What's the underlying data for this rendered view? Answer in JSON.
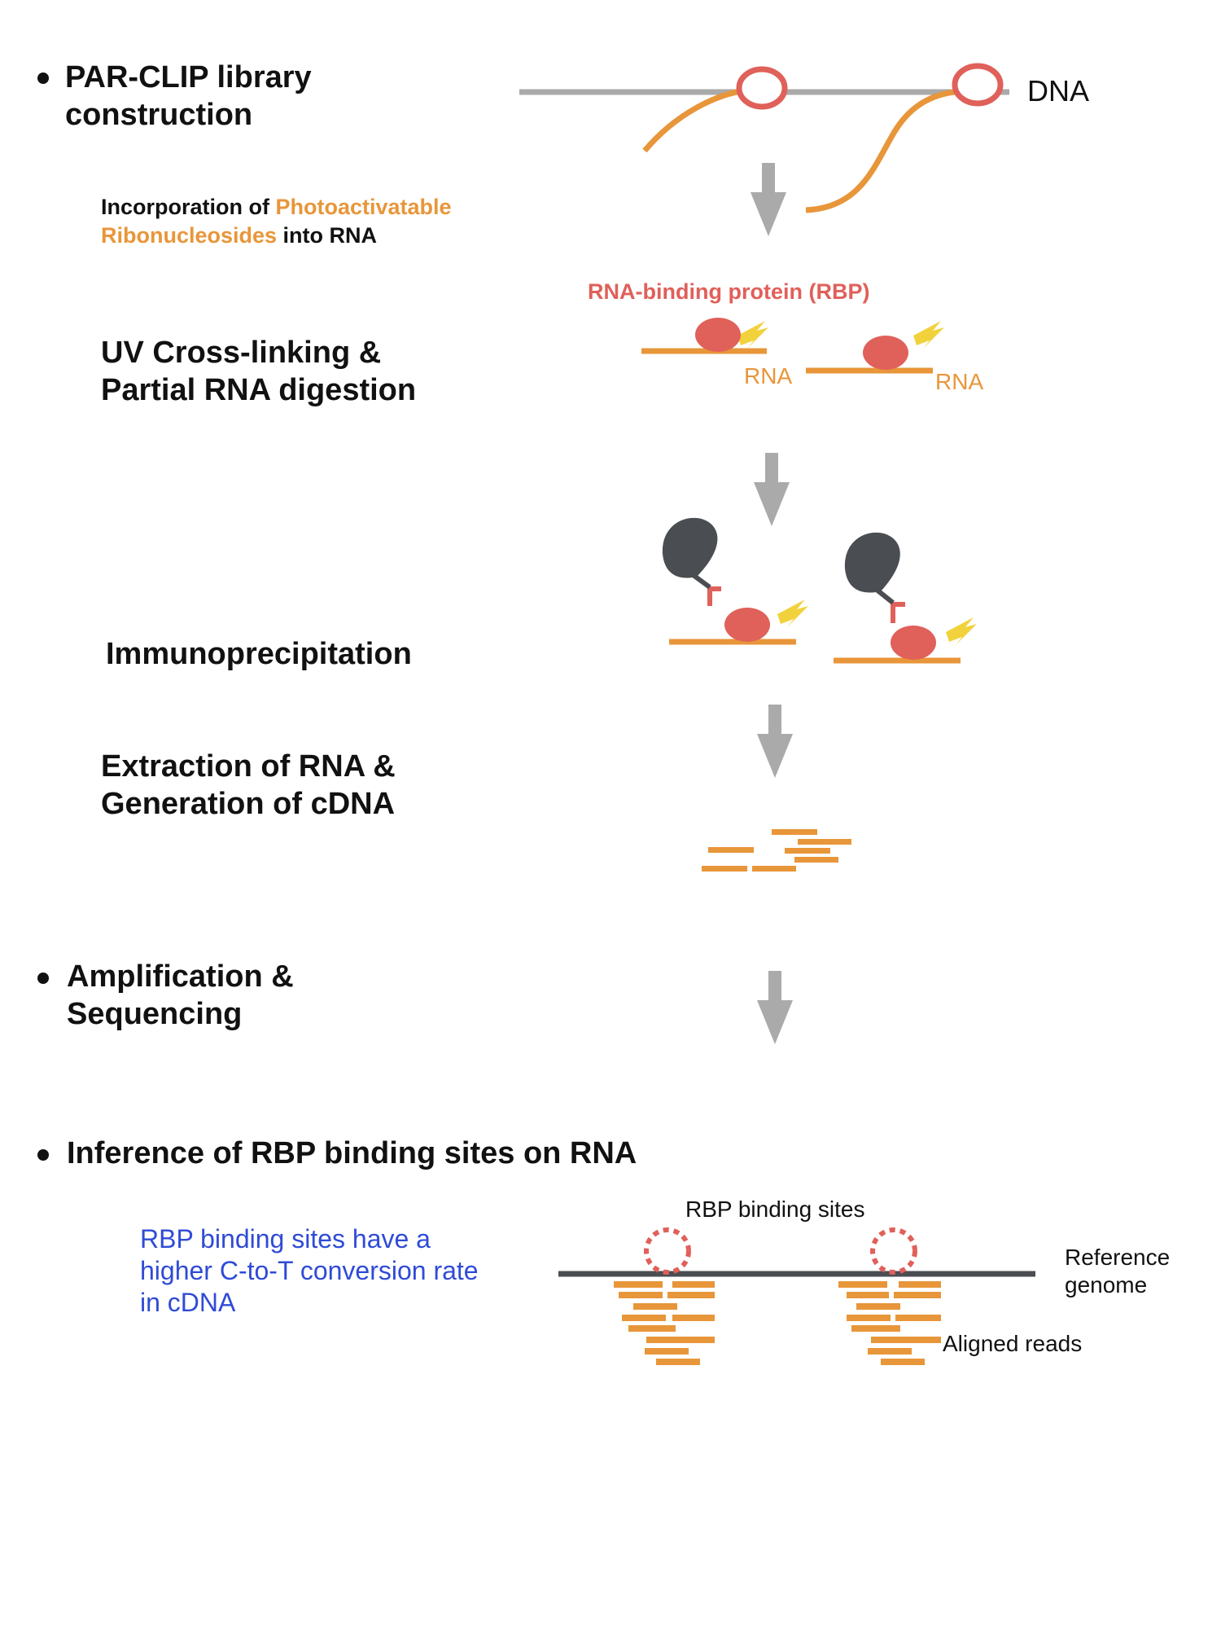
{
  "colors": {
    "orange": "#e8963a",
    "red": "#e0605a",
    "gray": "#aaaaaa",
    "dark": "#4a4d52",
    "yellow": "#f2d23c",
    "blue": "#2f4bd6"
  },
  "steps": {
    "library": "PAR-CLIP library construction",
    "uv_line1": "UV Cross-linking &",
    "uv_line2": "Partial RNA digestion",
    "ip": "Immunoprecipitation",
    "extract_line1": "Extraction of RNA &",
    "extract_line2": "Generation of cDNA",
    "amp_line1": "Amplification &",
    "amp_line2": "Sequencing",
    "inference": "Inference of RBP binding sites on RNA"
  },
  "incorporation": {
    "prefix": "Incorporation of ",
    "highlight_line1": "Photoactivatable",
    "highlight_line2": "Ribonucleosides",
    "suffix": " into RNA"
  },
  "labels": {
    "dna": "DNA",
    "rbp": "RNA-binding protein (RBP)",
    "rna_left": "RNA",
    "rna_right": "RNA",
    "binding_sites": "RBP binding sites",
    "reference_line1": "Reference",
    "reference_line2": "genome",
    "aligned_reads": "Aligned reads"
  },
  "note": {
    "line1": "RBP binding sites have a",
    "line2": "higher C-to-T conversion rate",
    "line3": "in cDNA"
  }
}
